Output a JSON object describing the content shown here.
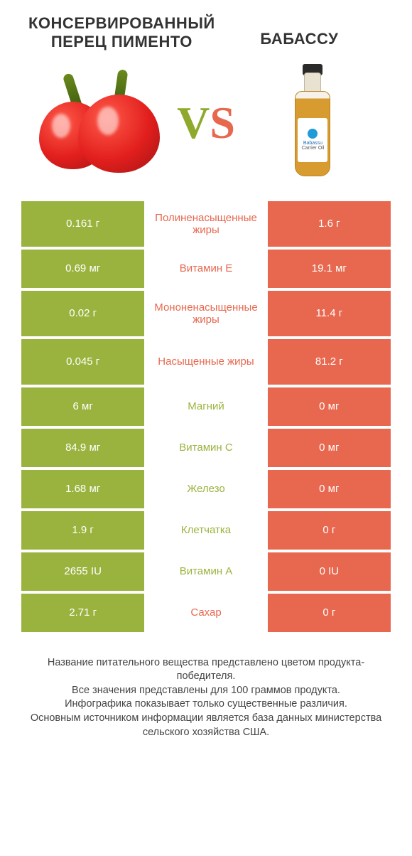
{
  "colors": {
    "left": "#9ab33e",
    "right": "#e7684f",
    "mid_bg": "#ffffff"
  },
  "titles": {
    "left": "КОНСЕРВИРОВАННЫЙ ПЕРЕЦ ПИМЕНТО",
    "right": "БАБАССУ"
  },
  "vs": {
    "v": "V",
    "s": "S"
  },
  "bottle_label": {
    "line1": "Babassu",
    "line2": "Carrier Oil"
  },
  "rows": [
    {
      "left": "0.161 г",
      "label": "Полиненасыщенные жиры",
      "right": "1.6 г",
      "winner": "right",
      "tall": true
    },
    {
      "left": "0.69 мг",
      "label": "Витамин E",
      "right": "19.1 мг",
      "winner": "right"
    },
    {
      "left": "0.02 г",
      "label": "Мононенасыщенные жиры",
      "right": "11.4 г",
      "winner": "right",
      "tall": true
    },
    {
      "left": "0.045 г",
      "label": "Насыщенные жиры",
      "right": "81.2 г",
      "winner": "right",
      "tall": true
    },
    {
      "left": "6 мг",
      "label": "Магний",
      "right": "0 мг",
      "winner": "left"
    },
    {
      "left": "84.9 мг",
      "label": "Витамин C",
      "right": "0 мг",
      "winner": "left"
    },
    {
      "left": "1.68 мг",
      "label": "Железо",
      "right": "0 мг",
      "winner": "left"
    },
    {
      "left": "1.9 г",
      "label": "Клетчатка",
      "right": "0 г",
      "winner": "left"
    },
    {
      "left": "2655 IU",
      "label": "Витамин A",
      "right": "0 IU",
      "winner": "left"
    },
    {
      "left": "2.71 г",
      "label": "Сахар",
      "right": "0 г",
      "winner": "right"
    }
  ],
  "footer": [
    "Название питательного вещества представлено цветом продукта-победителя.",
    "Все значения представлены для 100 граммов продукта.",
    "Инфографика показывает только существенные различия.",
    "Основным источником информации является база данных министерства сельского хозяйства США."
  ]
}
